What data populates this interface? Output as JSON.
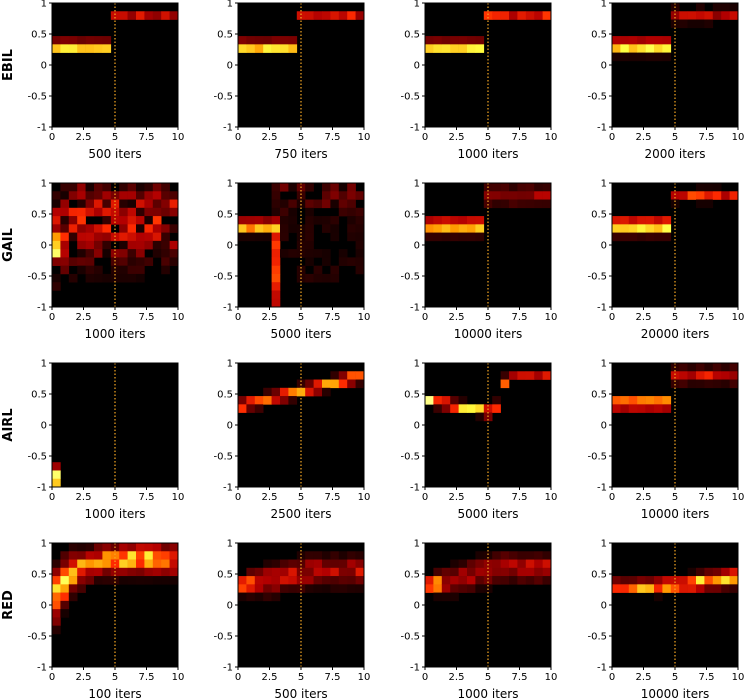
{
  "figure": {
    "rows": [
      "EBIL",
      "GAIL",
      "AIRL",
      "RED"
    ],
    "x_ticks": [
      "0",
      "2.5",
      "5",
      "7.5",
      "10"
    ],
    "y_ticks": [
      "1",
      "0.5",
      "0",
      "-0.5",
      "-1"
    ]
  },
  "chart_data": [
    {
      "type": "heatmap",
      "row": "EBIL",
      "xlabel": "500 iters",
      "xlim": [
        0,
        10
      ],
      "ylim": [
        -1,
        1
      ],
      "grid": false,
      "marker_x": 5,
      "intensity_map": {
        "left": {
          "center": 0.3,
          "spread": 0.06,
          "peak": 0.95
        },
        "right": {
          "center": 0.8,
          "spread": 0.05,
          "peak": 0.45
        }
      }
    },
    {
      "type": "heatmap",
      "row": "EBIL",
      "xlabel": "750 iters",
      "xlim": [
        0,
        10
      ],
      "ylim": [
        -1,
        1
      ],
      "grid": false,
      "marker_x": 5,
      "intensity_map": {
        "left": {
          "center": 0.3,
          "spread": 0.06,
          "peak": 0.97
        },
        "right": {
          "center": 0.8,
          "spread": 0.05,
          "peak": 0.5
        }
      }
    },
    {
      "type": "heatmap",
      "row": "EBIL",
      "xlabel": "1000 iters",
      "xlim": [
        0,
        10
      ],
      "ylim": [
        -1,
        1
      ],
      "grid": false,
      "marker_x": 5,
      "intensity_map": {
        "left": {
          "center": 0.3,
          "spread": 0.06,
          "peak": 0.97
        },
        "right": {
          "center": 0.8,
          "spread": 0.05,
          "peak": 0.55
        }
      }
    },
    {
      "type": "heatmap",
      "row": "EBIL",
      "xlabel": "2000 iters",
      "xlim": [
        0,
        10
      ],
      "ylim": [
        -1,
        1
      ],
      "grid": false,
      "marker_x": 5,
      "intensity_map": {
        "left": {
          "center": 0.3,
          "spread": 0.07,
          "peak": 0.95
        },
        "right": {
          "center": 0.8,
          "spread": 0.07,
          "peak": 0.4
        }
      }
    },
    {
      "type": "heatmap",
      "row": "GAIL",
      "xlabel": "1000 iters",
      "xlim": [
        0,
        10
      ],
      "ylim": [
        -1,
        1
      ],
      "grid": false,
      "marker_x": 5,
      "intensity_map": {
        "mode": "diffuse",
        "center": 0.4,
        "spread": 0.45,
        "peak": 0.55
      }
    },
    {
      "type": "heatmap",
      "row": "GAIL",
      "xlabel": "5000 iters",
      "xlim": [
        0,
        10
      ],
      "ylim": [
        -1,
        1
      ],
      "grid": false,
      "marker_x": 5,
      "intensity_map": {
        "left": {
          "center": 0.3,
          "spread": 0.07,
          "peak": 0.85
        },
        "drop_at_x": 2.5,
        "right": {
          "center": 0.8,
          "spread": 0.15,
          "peak": 0.2
        }
      }
    },
    {
      "type": "heatmap",
      "row": "GAIL",
      "xlabel": "10000 iters",
      "xlim": [
        0,
        10
      ],
      "ylim": [
        -1,
        1
      ],
      "grid": false,
      "marker_x": 5,
      "intensity_map": {
        "left": {
          "center": 0.3,
          "spread": 0.08,
          "peak": 0.85
        },
        "right": {
          "center": 0.8,
          "spread": 0.1,
          "peak": 0.35
        }
      }
    },
    {
      "type": "heatmap",
      "row": "GAIL",
      "xlabel": "20000 iters",
      "xlim": [
        0,
        10
      ],
      "ylim": [
        -1,
        1
      ],
      "grid": false,
      "marker_x": 5,
      "intensity_map": {
        "left": {
          "center": 0.3,
          "spread": 0.08,
          "peak": 0.95
        },
        "right": {
          "center": 0.8,
          "spread": 0.06,
          "peak": 0.55
        }
      }
    },
    {
      "type": "heatmap",
      "row": "AIRL",
      "xlabel": "1000 iters",
      "xlim": [
        0,
        10
      ],
      "ylim": [
        -1,
        1
      ],
      "grid": false,
      "marker_x": 5,
      "intensity_map": {
        "mode": "first_column",
        "center": -0.85,
        "spread": 0.12,
        "peak": 0.95
      }
    },
    {
      "type": "heatmap",
      "row": "AIRL",
      "xlabel": "2500 iters",
      "xlim": [
        0,
        10
      ],
      "ylim": [
        -1,
        1
      ],
      "grid": false,
      "marker_x": 5,
      "intensity_map": {
        "mode": "ramp",
        "start": 0.3,
        "end": 0.8,
        "spread": 0.06,
        "peak": 0.8
      }
    },
    {
      "type": "heatmap",
      "row": "AIRL",
      "xlabel": "5000 iters",
      "xlim": [
        0,
        10
      ],
      "ylim": [
        -1,
        1
      ],
      "grid": false,
      "marker_x": 5,
      "intensity_map": {
        "mode": "dip",
        "start": 0.4,
        "dip": 0.2,
        "end": 0.8,
        "spread": 0.05,
        "peak": 0.95
      }
    },
    {
      "type": "heatmap",
      "row": "AIRL",
      "xlabel": "10000 iters",
      "xlim": [
        0,
        10
      ],
      "ylim": [
        -1,
        1
      ],
      "grid": false,
      "marker_x": 5,
      "intensity_map": {
        "left": {
          "center": 0.35,
          "spread": 0.06,
          "peak": 0.95
        },
        "right": {
          "center": 0.8,
          "spread": 0.08,
          "peak": 0.5
        }
      }
    },
    {
      "type": "heatmap",
      "row": "RED",
      "xlabel": "100 iters",
      "xlim": [
        0,
        10
      ],
      "ylim": [
        -1,
        1
      ],
      "grid": false,
      "marker_x": 5,
      "intensity_map": {
        "mode": "rise",
        "start": 0.0,
        "end": 0.75,
        "spread": 0.15,
        "peak": 0.9
      }
    },
    {
      "type": "heatmap",
      "row": "RED",
      "xlabel": "500 iters",
      "xlim": [
        0,
        10
      ],
      "ylim": [
        -1,
        1
      ],
      "grid": false,
      "marker_x": 5,
      "intensity_map": {
        "mode": "soft_rise",
        "start": 0.3,
        "end": 0.55,
        "spread": 0.15,
        "peak": 0.9
      }
    },
    {
      "type": "heatmap",
      "row": "RED",
      "xlabel": "1000 iters",
      "xlim": [
        0,
        10
      ],
      "ylim": [
        -1,
        1
      ],
      "grid": false,
      "marker_x": 5,
      "intensity_map": {
        "mode": "soft_rise",
        "start": 0.3,
        "end": 0.6,
        "spread": 0.14,
        "peak": 0.9
      }
    },
    {
      "type": "heatmap",
      "row": "RED",
      "xlabel": "10000 iters",
      "xlim": [
        0,
        10
      ],
      "ylim": [
        -1,
        1
      ],
      "grid": false,
      "marker_x": 5,
      "intensity_map": {
        "mode": "band_rise",
        "start": 0.3,
        "end": 0.45,
        "spread": 0.06,
        "peak": 0.85
      }
    }
  ],
  "colors": {
    "background": "#000000",
    "marker_line": "#f5a623",
    "colormap": [
      "#000000",
      "#5a0000",
      "#b20000",
      "#ff2a00",
      "#ff9a00",
      "#ffff40",
      "#ffffff"
    ]
  }
}
